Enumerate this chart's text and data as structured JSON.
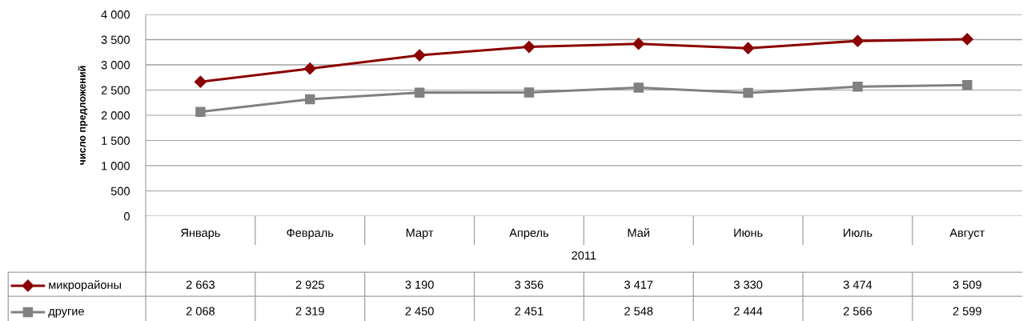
{
  "chart_data": {
    "type": "line",
    "ylabel": "число предложений",
    "xlabel": "2011",
    "categories": [
      "Январь",
      "Февраль",
      "Март",
      "Апрель",
      "Май",
      "Июнь",
      "Июль",
      "Август"
    ],
    "series": [
      {
        "name": "микрорайоны",
        "color": "#8b0000",
        "marker": "diamond",
        "values": [
          2663,
          2925,
          3190,
          3356,
          3417,
          3330,
          3474,
          3509
        ]
      },
      {
        "name": "другие",
        "color": "#808080",
        "marker": "square",
        "values": [
          2068,
          2319,
          2450,
          2451,
          2548,
          2444,
          2566,
          2599
        ]
      }
    ],
    "ylim": [
      0,
      4000
    ],
    "yticks": [
      {
        "value": 0,
        "label": "0"
      },
      {
        "value": 500,
        "label": "500"
      },
      {
        "value": 1000,
        "label": "1 000"
      },
      {
        "value": 1500,
        "label": "1 500"
      },
      {
        "value": 2000,
        "label": "2 000"
      },
      {
        "value": 2500,
        "label": "2 500"
      },
      {
        "value": 3000,
        "label": "3 000"
      },
      {
        "value": 3500,
        "label": "3 500"
      },
      {
        "value": 4000,
        "label": "4 000"
      }
    ],
    "grid": "y",
    "data_labels": true,
    "legend": "bottom left",
    "line_style": "solid"
  }
}
